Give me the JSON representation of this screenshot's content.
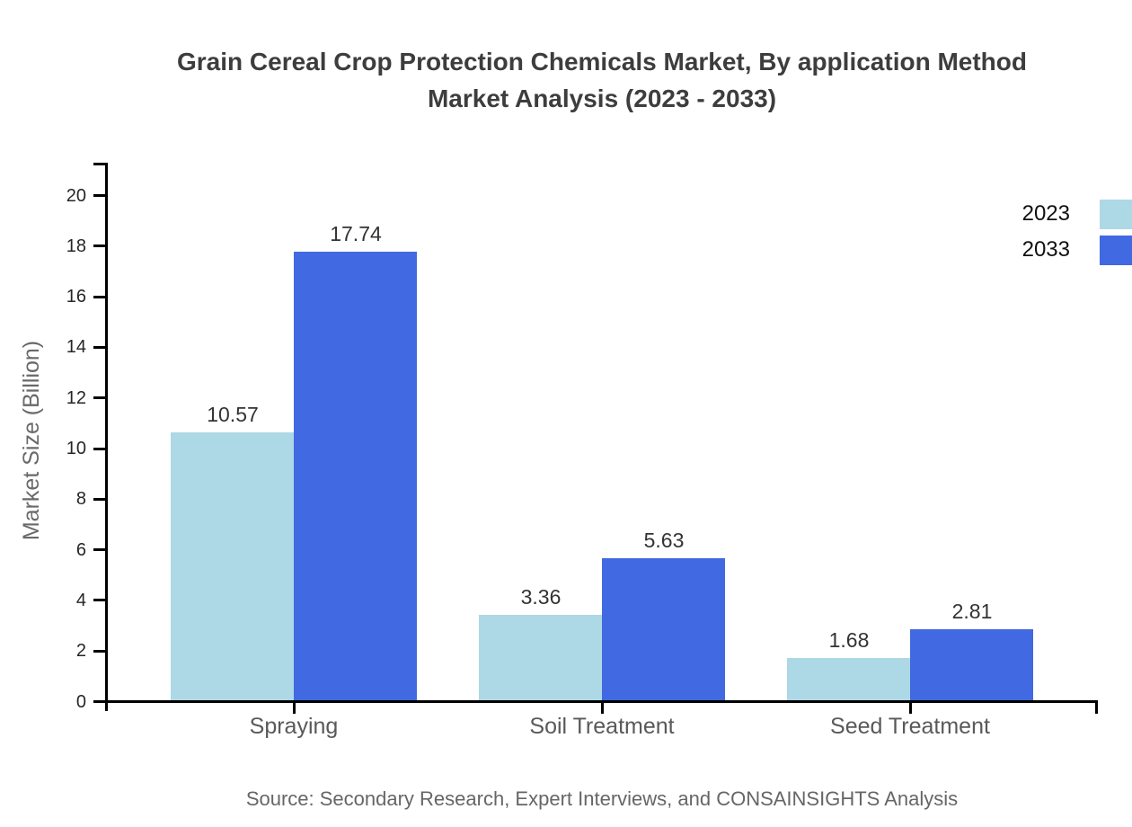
{
  "title": {
    "line1": "Grain Cereal Crop Protection Chemicals Market, By application Method",
    "line2": "Market Analysis (2023 - 2033)"
  },
  "source": "Source: Secondary Research, Expert Interviews, and CONSAINSIGHTS Analysis",
  "chart_data": {
    "type": "bar",
    "categories": [
      "Spraying",
      "Soil Treatment",
      "Seed Treatment"
    ],
    "series": [
      {
        "name": "2023",
        "color": "#ADD8E6",
        "values": [
          10.57,
          3.36,
          1.68
        ]
      },
      {
        "name": "2033",
        "color": "#4169E1",
        "values": [
          17.74,
          5.63,
          2.81
        ]
      }
    ],
    "title": "Grain Cereal Crop Protection Chemicals Market, By application Method Market Analysis (2023 - 2033)",
    "xlabel": "",
    "ylabel": "Market Size (Billion)",
    "ylim": [
      0,
      21.3
    ],
    "yticks": [
      0,
      2,
      4,
      6,
      8,
      10,
      12,
      14,
      16,
      18,
      20
    ],
    "grid": false,
    "legend_position": "top-right",
    "value_label_decimals": 2,
    "axis_color": "#000000",
    "tick_label_color": "#262626",
    "category_label_color": "#595959",
    "value_label_color": "#333333"
  }
}
